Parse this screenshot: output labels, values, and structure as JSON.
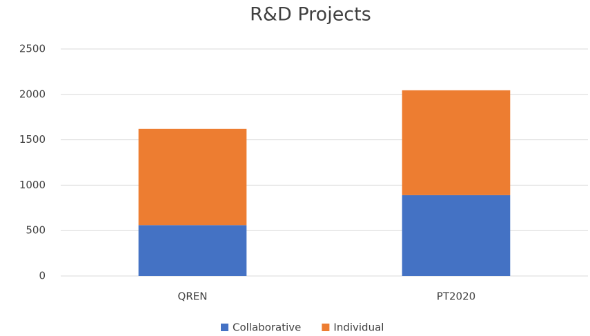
{
  "chart_data": {
    "type": "stacked_bar",
    "title": "R&D Projects",
    "categories": [
      "QREN",
      "PT2020"
    ],
    "series": [
      {
        "name": "Collaborative",
        "color": "#4472c4",
        "values": [
          560,
          890
        ]
      },
      {
        "name": "Individual",
        "color": "#ed7d31",
        "values": [
          1060,
          1155
        ]
      }
    ],
    "ylim": [
      0,
      2500
    ],
    "yticks": [
      0,
      500,
      1000,
      1500,
      2000,
      2500
    ],
    "grid": true,
    "legend": "bottom"
  }
}
